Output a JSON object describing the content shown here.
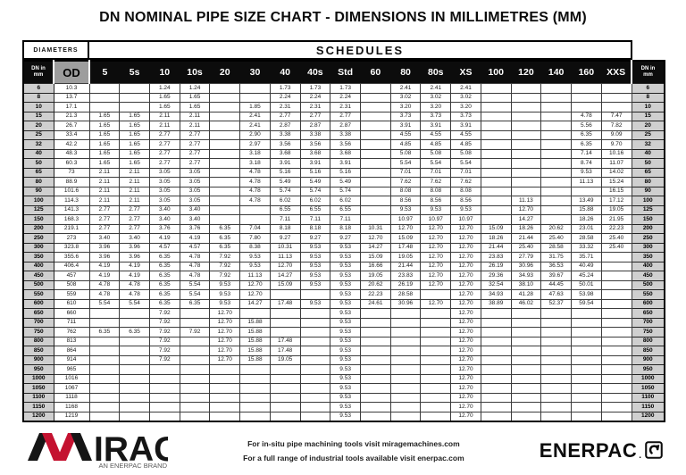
{
  "title": "DN NOMINAL PIPE SIZE CHART - DIMENSIONS IN MILLIMETRES (MM)",
  "colors": {
    "header_bg": "#0c0c0c",
    "od_header_bg": "#9d9d9d",
    "dn_cell_bg": "#cfcfcf",
    "mirage_red": "#c41230"
  },
  "table": {
    "band": {
      "diameters": "DIAMETERS",
      "schedules": "SCHEDULES"
    },
    "dn_header_line1": "DN in",
    "dn_header_line2": "mm",
    "od_header": "OD",
    "schedule_columns": [
      "5",
      "5s",
      "10",
      "10s",
      "20",
      "30",
      "40",
      "40s",
      "Std",
      "60",
      "80",
      "80s",
      "XS",
      "100",
      "120",
      "140",
      "160",
      "XXS"
    ],
    "rows": [
      [
        "6",
        "10.3",
        "",
        "",
        "1.24",
        "1.24",
        "",
        "",
        "1.73",
        "1.73",
        "1.73",
        "",
        "2.41",
        "2.41",
        "2.41",
        "",
        "",
        "",
        "",
        ""
      ],
      [
        "8",
        "13.7",
        "",
        "",
        "1.65",
        "1.65",
        "",
        "",
        "2.24",
        "2.24",
        "2.24",
        "",
        "3.02",
        "3.02",
        "3.02",
        "",
        "",
        "",
        "",
        ""
      ],
      [
        "10",
        "17.1",
        "",
        "",
        "1.65",
        "1.65",
        "",
        "1.85",
        "2.31",
        "2.31",
        "2.31",
        "",
        "3.20",
        "3.20",
        "3.20",
        "",
        "",
        "",
        "",
        ""
      ],
      [
        "15",
        "21.3",
        "1.65",
        "1.65",
        "2.11",
        "2.11",
        "",
        "2.41",
        "2.77",
        "2.77",
        "2.77",
        "",
        "3.73",
        "3.73",
        "3.73",
        "",
        "",
        "",
        "4.78",
        "7.47"
      ],
      [
        "20",
        "26.7",
        "1.65",
        "1.65",
        "2.11",
        "2.11",
        "",
        "2.41",
        "2.87",
        "2.87",
        "2.87",
        "",
        "3.91",
        "3.91",
        "3.91",
        "",
        "",
        "",
        "5.56",
        "7.82"
      ],
      [
        "25",
        "33.4",
        "1.65",
        "1.65",
        "2.77",
        "2.77",
        "",
        "2.90",
        "3.38",
        "3.38",
        "3.38",
        "",
        "4.55",
        "4.55",
        "4.55",
        "",
        "",
        "",
        "6.35",
        "9.09"
      ],
      [
        "32",
        "42.2",
        "1.65",
        "1.65",
        "2.77",
        "2.77",
        "",
        "2.97",
        "3.56",
        "3.56",
        "3.56",
        "",
        "4.85",
        "4.85",
        "4.85",
        "",
        "",
        "",
        "6.35",
        "9.70"
      ],
      [
        "40",
        "48.3",
        "1.65",
        "1.65",
        "2.77",
        "2.77",
        "",
        "3.18",
        "3.68",
        "3.68",
        "3.68",
        "",
        "5.08",
        "5.08",
        "5.08",
        "",
        "",
        "",
        "7.14",
        "10.16"
      ],
      [
        "50",
        "60.3",
        "1.65",
        "1.65",
        "2.77",
        "2.77",
        "",
        "3.18",
        "3.91",
        "3.91",
        "3.91",
        "",
        "5.54",
        "5.54",
        "5.54",
        "",
        "",
        "",
        "8.74",
        "11.07"
      ],
      [
        "65",
        "73",
        "2.11",
        "2.11",
        "3.05",
        "3.05",
        "",
        "4.78",
        "5.16",
        "5.16",
        "5.16",
        "",
        "7.01",
        "7.01",
        "7.01",
        "",
        "",
        "",
        "9.53",
        "14.02"
      ],
      [
        "80",
        "88.9",
        "2.11",
        "2.11",
        "3.05",
        "3.05",
        "",
        "4.78",
        "5.49",
        "5.49",
        "5.49",
        "",
        "7.62",
        "7.62",
        "7.62",
        "",
        "",
        "",
        "11.13",
        "15.24"
      ],
      [
        "90",
        "101.6",
        "2.11",
        "2.11",
        "3.05",
        "3.05",
        "",
        "4.78",
        "5.74",
        "5.74",
        "5.74",
        "",
        "8.08",
        "8.08",
        "8.08",
        "",
        "",
        "",
        "",
        "16.15"
      ],
      [
        "100",
        "114.3",
        "2.11",
        "2.11",
        "3.05",
        "3.05",
        "",
        "4.78",
        "6.02",
        "6.02",
        "6.02",
        "",
        "8.56",
        "8.56",
        "8.56",
        "",
        "11.13",
        "",
        "13.49",
        "17.12"
      ],
      [
        "125",
        "141.3",
        "2.77",
        "2.77",
        "3.40",
        "3.40",
        "",
        "",
        "6.55",
        "6.55",
        "6.55",
        "",
        "9.53",
        "9.53",
        "9.53",
        "",
        "12.70",
        "",
        "15.88",
        "19.05"
      ],
      [
        "150",
        "168.3",
        "2.77",
        "2.77",
        "3.40",
        "3.40",
        "",
        "",
        "7.11",
        "7.11",
        "7.11",
        "",
        "10.97",
        "10.97",
        "10.97",
        "",
        "14.27",
        "",
        "18.26",
        "21.95"
      ],
      [
        "200",
        "219.1",
        "2.77",
        "2.77",
        "3.76",
        "3.76",
        "6.35",
        "7.04",
        "8.18",
        "8.18",
        "8.18",
        "10.31",
        "12.70",
        "12.70",
        "12.70",
        "15.09",
        "18.26",
        "20.62",
        "23.01",
        "22.23"
      ],
      [
        "250",
        "273",
        "3.40",
        "3.40",
        "4.19",
        "4.19",
        "6.35",
        "7.80",
        "9.27",
        "9.27",
        "9.27",
        "12.70",
        "15.09",
        "12.70",
        "12.70",
        "18.26",
        "21.44",
        "25.40",
        "28.58",
        "25.40"
      ],
      [
        "300",
        "323.8",
        "3.96",
        "3.96",
        "4.57",
        "4.57",
        "6.35",
        "8.38",
        "10.31",
        "9.53",
        "9.53",
        "14.27",
        "17.48",
        "12.70",
        "12.70",
        "21.44",
        "25.40",
        "28.58",
        "33.32",
        "25.40"
      ],
      [
        "350",
        "355.6",
        "3.96",
        "3.96",
        "6.35",
        "4.78",
        "7.92",
        "9.53",
        "11.13",
        "9.53",
        "9.53",
        "15.09",
        "19.05",
        "12.70",
        "12.70",
        "23.83",
        "27.79",
        "31.75",
        "35.71",
        ""
      ],
      [
        "400",
        "406.4",
        "4.19",
        "4.19",
        "6.35",
        "4.78",
        "7.92",
        "9.53",
        "12.70",
        "9.53",
        "9.53",
        "16.66",
        "21.44",
        "12.70",
        "12.70",
        "26.19",
        "30.96",
        "36.53",
        "40.49",
        ""
      ],
      [
        "450",
        "457",
        "4.19",
        "4.19",
        "6.35",
        "4.78",
        "7.92",
        "11.13",
        "14.27",
        "9.53",
        "9.53",
        "19.05",
        "23.83",
        "12.70",
        "12.70",
        "29.36",
        "34.93",
        "39.67",
        "45.24",
        ""
      ],
      [
        "500",
        "508",
        "4.78",
        "4.78",
        "6.35",
        "5.54",
        "9.53",
        "12.70",
        "15.09",
        "9.53",
        "9.53",
        "20.62",
        "26.19",
        "12.70",
        "12.70",
        "32.54",
        "38.10",
        "44.45",
        "50.01",
        ""
      ],
      [
        "550",
        "559",
        "4.78",
        "4.78",
        "6.35",
        "5.54",
        "9.53",
        "12.70",
        "",
        "",
        "9.53",
        "22.23",
        "28.58",
        "",
        "12.70",
        "34.93",
        "41.28",
        "47.63",
        "53.98",
        ""
      ],
      [
        "600",
        "610",
        "5.54",
        "5.54",
        "6.35",
        "6.35",
        "9.53",
        "14.27",
        "17.48",
        "9.53",
        "9.53",
        "24.61",
        "30.96",
        "12.70",
        "12.70",
        "38.89",
        "46.02",
        "52.37",
        "59.54",
        ""
      ],
      [
        "650",
        "660",
        "",
        "",
        "7.92",
        "",
        "12.70",
        "",
        "",
        "",
        "9.53",
        "",
        "",
        "",
        "12.70",
        "",
        "",
        "",
        "",
        ""
      ],
      [
        "700",
        "711",
        "",
        "",
        "7.92",
        "",
        "12.70",
        "15.88",
        "",
        "",
        "9.53",
        "",
        "",
        "",
        "12.70",
        "",
        "",
        "",
        "",
        ""
      ],
      [
        "750",
        "762",
        "6.35",
        "6.35",
        "7.92",
        "7.92",
        "12.70",
        "15.88",
        "",
        "",
        "9.53",
        "",
        "",
        "",
        "12.70",
        "",
        "",
        "",
        "",
        ""
      ],
      [
        "800",
        "813",
        "",
        "",
        "7.92",
        "",
        "12.70",
        "15.88",
        "17.48",
        "",
        "9.53",
        "",
        "",
        "",
        "12.70",
        "",
        "",
        "",
        "",
        ""
      ],
      [
        "850",
        "864",
        "",
        "",
        "7.92",
        "",
        "12.70",
        "15.88",
        "17.48",
        "",
        "9.53",
        "",
        "",
        "",
        "12.70",
        "",
        "",
        "",
        "",
        ""
      ],
      [
        "900",
        "914",
        "",
        "",
        "7.92",
        "",
        "12.70",
        "15.88",
        "19.05",
        "",
        "9.53",
        "",
        "",
        "",
        "12.70",
        "",
        "",
        "",
        "",
        ""
      ],
      [
        "950",
        "965",
        "",
        "",
        "",
        "",
        "",
        "",
        "",
        "",
        "9.53",
        "",
        "",
        "",
        "12.70",
        "",
        "",
        "",
        "",
        ""
      ],
      [
        "1000",
        "1016",
        "",
        "",
        "",
        "",
        "",
        "",
        "",
        "",
        "9.53",
        "",
        "",
        "",
        "12.70",
        "",
        "",
        "",
        "",
        ""
      ],
      [
        "1050",
        "1067",
        "",
        "",
        "",
        "",
        "",
        "",
        "",
        "",
        "9.53",
        "",
        "",
        "",
        "12.70",
        "",
        "",
        "",
        "",
        ""
      ],
      [
        "1100",
        "1118",
        "",
        "",
        "",
        "",
        "",
        "",
        "",
        "",
        "9.53",
        "",
        "",
        "",
        "12.70",
        "",
        "",
        "",
        "",
        ""
      ],
      [
        "1150",
        "1168",
        "",
        "",
        "",
        "",
        "",
        "",
        "",
        "",
        "9.53",
        "",
        "",
        "",
        "12.70",
        "",
        "",
        "",
        "",
        ""
      ],
      [
        "1200",
        "1219",
        "",
        "",
        "",
        "",
        "",
        "",
        "",
        "",
        "9.53",
        "",
        "",
        "",
        "12.70",
        "",
        "",
        "",
        "",
        ""
      ]
    ]
  },
  "footer": {
    "mirage_logo_text": "MIRAGE",
    "mirage_tagline": "AN ENERPAC BRAND",
    "tagline_line1": "For in-situ pipe machining tools visit miragemachines.com",
    "tagline_line2": "For a full range of industrial tools available visit enerpac.com",
    "enerpac_logo_text": "ENERPAC",
    "enerpac_dot": "."
  }
}
